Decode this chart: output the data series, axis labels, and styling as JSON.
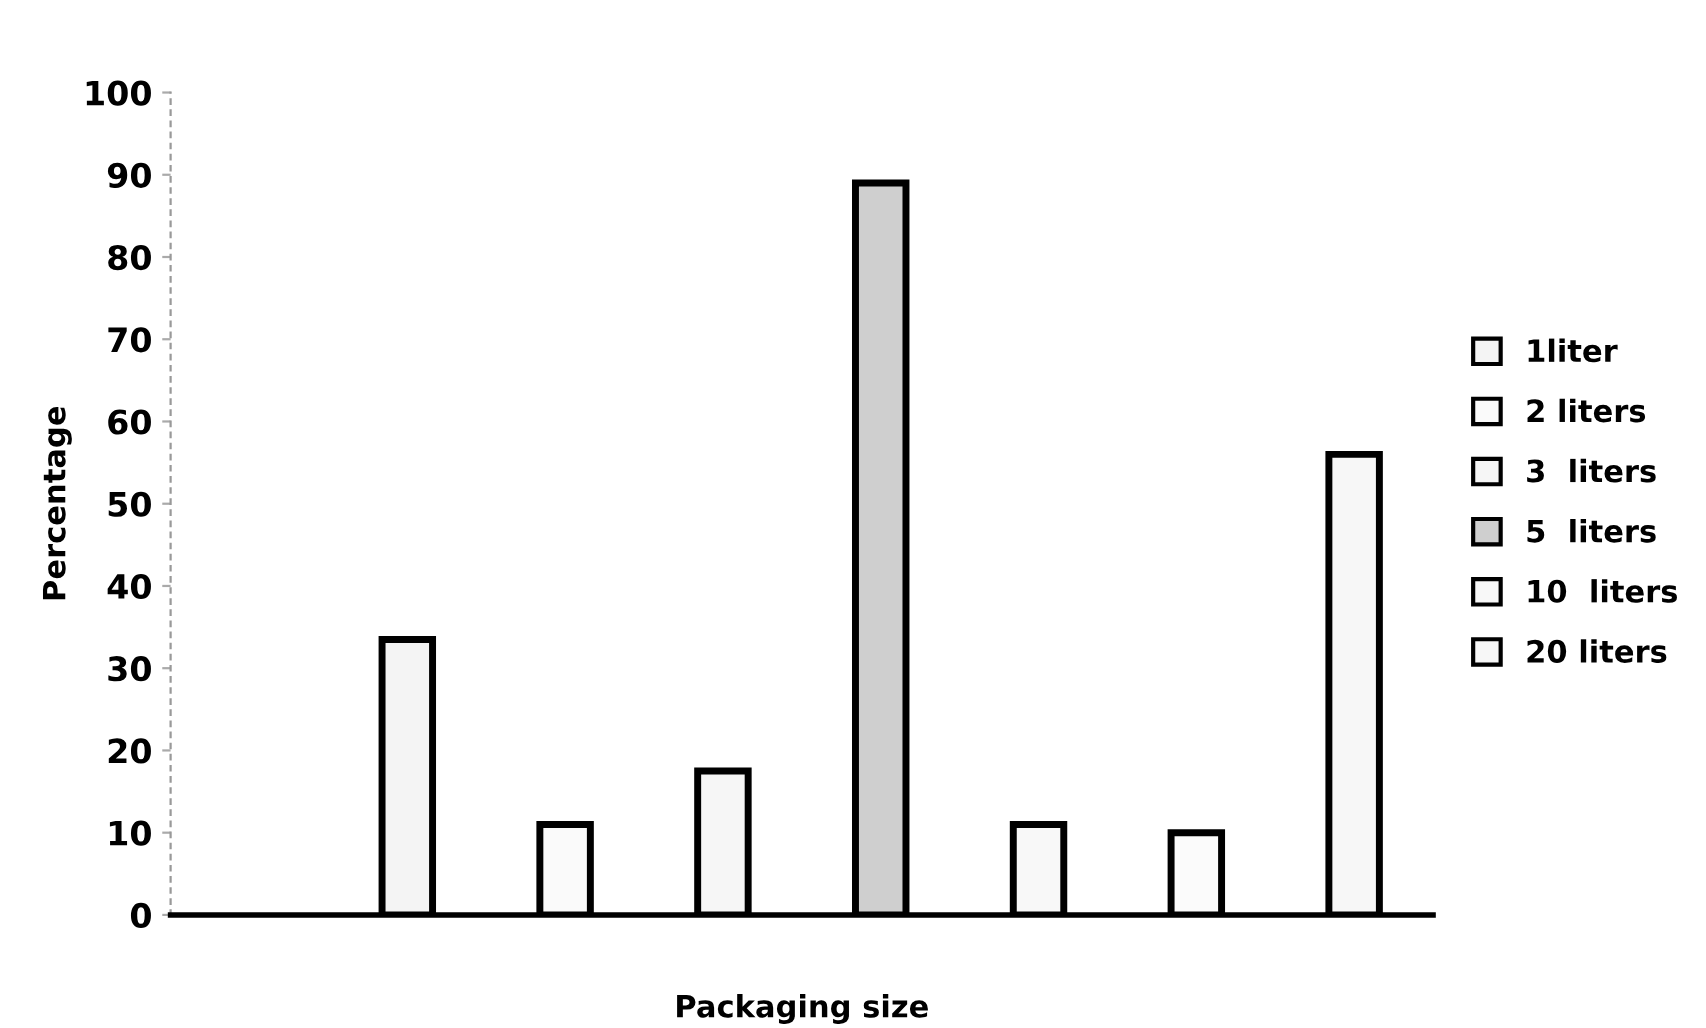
{
  "chart_data": {
    "type": "bar",
    "xlabel": "Packaging size",
    "ylabel": "Percentage",
    "categories": [
      null,
      null,
      null,
      null,
      null,
      null,
      null,
      null
    ],
    "series": [
      {
        "name": "1liter",
        "color": "#f4f4f4",
        "values": [
          null,
          33.5,
          null,
          null,
          null,
          null,
          null,
          null
        ]
      },
      {
        "name": "2 liters",
        "color": "#fafafa",
        "values": [
          null,
          null,
          11,
          null,
          null,
          null,
          null,
          null
        ]
      },
      {
        "name": "3  liters",
        "color": "#f6f6f6",
        "values": [
          null,
          null,
          null,
          17.5,
          null,
          null,
          null,
          null
        ]
      },
      {
        "name": "5  liters",
        "color": "#cfcfcf",
        "values": [
          null,
          null,
          null,
          null,
          89,
          null,
          null,
          null
        ]
      },
      {
        "name": "10  liters",
        "color": "#f8f8f8",
        "values": [
          null,
          null,
          null,
          null,
          null,
          11,
          null,
          null
        ]
      },
      {
        "color": "#fbfbfb",
        "values": [
          null,
          null,
          null,
          null,
          null,
          null,
          10,
          null
        ]
      },
      {
        "name": "20 liters",
        "color": "#f7f7f7",
        "values": [
          null,
          null,
          null,
          null,
          null,
          null,
          null,
          56
        ]
      }
    ],
    "ylim": [
      0,
      100
    ],
    "yticks": [
      0,
      10,
      20,
      30,
      40,
      50,
      60,
      70,
      80,
      90,
      100
    ],
    "grid": false,
    "legend": "right"
  }
}
